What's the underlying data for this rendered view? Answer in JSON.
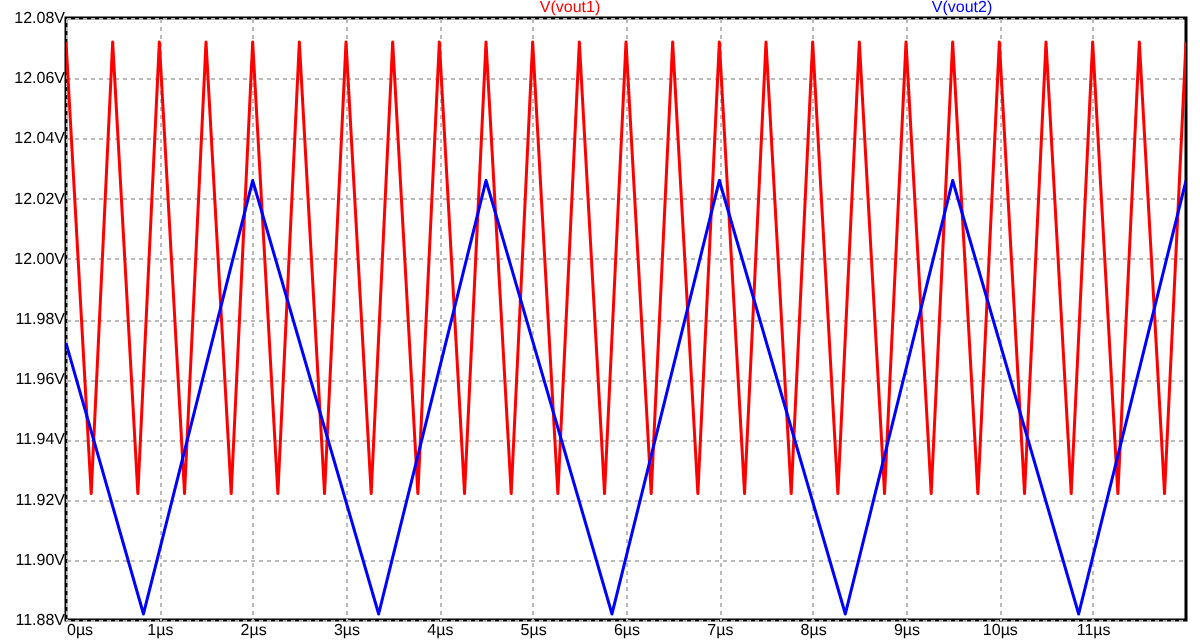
{
  "chart_data": {
    "type": "line",
    "xlim": [
      0,
      12
    ],
    "ylim": [
      11.88,
      12.08
    ],
    "xticks": [
      {
        "value": 0,
        "label": "0µs"
      },
      {
        "value": 1,
        "label": "1µs"
      },
      {
        "value": 2,
        "label": "2µs"
      },
      {
        "value": 3,
        "label": "3µs"
      },
      {
        "value": 4,
        "label": "4µs"
      },
      {
        "value": 5,
        "label": "5µs"
      },
      {
        "value": 6,
        "label": "6µs"
      },
      {
        "value": 7,
        "label": "7µs"
      },
      {
        "value": 8,
        "label": "8µs"
      },
      {
        "value": 9,
        "label": "9µs"
      },
      {
        "value": 10,
        "label": "10µs"
      },
      {
        "value": 11,
        "label": "11µs"
      }
    ],
    "yticks": [
      {
        "value": 11.88,
        "label": "11.88V"
      },
      {
        "value": 11.9,
        "label": "11.90V"
      },
      {
        "value": 11.92,
        "label": "11.92V"
      },
      {
        "value": 11.94,
        "label": "11.94V"
      },
      {
        "value": 11.96,
        "label": "11.96V"
      },
      {
        "value": 11.98,
        "label": "11.98V"
      },
      {
        "value": 12.0,
        "label": "12.00V"
      },
      {
        "value": 12.02,
        "label": "12.02V"
      },
      {
        "value": 12.04,
        "label": "12.04V"
      },
      {
        "value": 12.06,
        "label": "12.06V"
      },
      {
        "value": 12.08,
        "label": "12.08V"
      }
    ],
    "grid": true,
    "series": [
      {
        "name": "V(vout1)",
        "color": "#ff0000",
        "x": [
          0,
          0.27,
          0.5,
          0.77,
          1.0,
          1.27,
          1.5,
          1.77,
          2.0,
          2.27,
          2.5,
          2.77,
          3.0,
          3.27,
          3.5,
          3.77,
          4.0,
          4.27,
          4.5,
          4.77,
          5.0,
          5.27,
          5.5,
          5.77,
          6.0,
          6.27,
          6.5,
          6.77,
          7.0,
          7.27,
          7.5,
          7.77,
          8.0,
          8.27,
          8.5,
          8.77,
          9.0,
          9.27,
          9.5,
          9.77,
          10.0,
          10.27,
          10.5,
          10.77,
          11.0,
          11.27,
          11.5,
          11.77,
          12.0
        ],
        "values": [
          12.072,
          11.922,
          12.072,
          11.922,
          12.072,
          11.922,
          12.072,
          11.922,
          12.072,
          11.922,
          12.072,
          11.922,
          12.072,
          11.922,
          12.072,
          11.922,
          12.072,
          11.922,
          12.072,
          11.922,
          12.072,
          11.922,
          12.072,
          11.922,
          12.072,
          11.922,
          12.072,
          11.922,
          12.072,
          11.922,
          12.072,
          11.922,
          12.072,
          11.922,
          12.072,
          11.922,
          12.072,
          11.922,
          12.072,
          11.922,
          12.072,
          11.922,
          12.072,
          11.922,
          12.072,
          11.922,
          12.072,
          11.922,
          12.072
        ]
      },
      {
        "name": "V(vout2)",
        "color": "#0000ff",
        "x": [
          0,
          0.83,
          2.0,
          3.35,
          4.5,
          5.85,
          7.0,
          8.35,
          9.5,
          10.85,
          12.0
        ],
        "values": [
          11.972,
          11.882,
          12.026,
          11.882,
          12.026,
          11.882,
          12.026,
          11.882,
          12.026,
          11.882,
          12.026
        ]
      }
    ]
  }
}
